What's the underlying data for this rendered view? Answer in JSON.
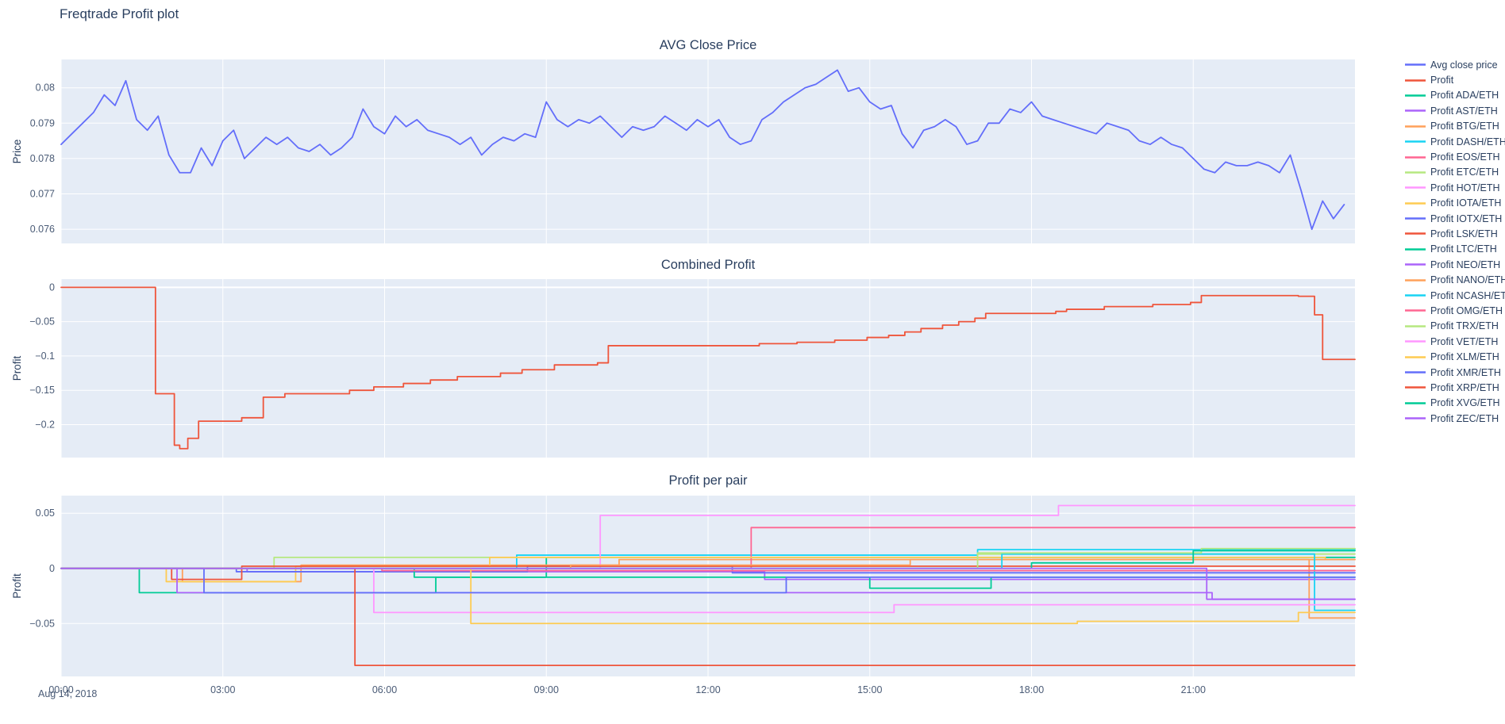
{
  "page": {
    "title": "Freqtrade Profit plot"
  },
  "colors": {
    "plot_bg": "#e5ecf6",
    "grid": "#ffffff",
    "font": "#2a3f5f",
    "tick": "#4a5b76",
    "price_line": "#636efa",
    "profit_line": "#EF553B"
  },
  "x_axis": {
    "tick_hours": [
      0,
      3,
      6,
      9,
      12,
      15,
      18,
      21
    ],
    "tick_labels": [
      "00:00",
      "03:00",
      "06:00",
      "09:00",
      "12:00",
      "15:00",
      "18:00",
      "21:00"
    ],
    "xlim": [
      0,
      24
    ],
    "date_label": "Aug 14, 2018"
  },
  "legend": {
    "items": [
      {
        "label": "Avg close price",
        "color": "#636efa"
      },
      {
        "label": "Profit",
        "color": "#EF553B"
      },
      {
        "label": "Profit ADA/ETH",
        "color": "#00cc96"
      },
      {
        "label": "Profit AST/ETH",
        "color": "#ab63fa"
      },
      {
        "label": "Profit BTG/ETH",
        "color": "#FFA15A"
      },
      {
        "label": "Profit DASH/ETH",
        "color": "#19d3f3"
      },
      {
        "label": "Profit EOS/ETH",
        "color": "#FF6692"
      },
      {
        "label": "Profit ETC/ETH",
        "color": "#B6E880"
      },
      {
        "label": "Profit HOT/ETH",
        "color": "#FF97FF"
      },
      {
        "label": "Profit IOTA/ETH",
        "color": "#FECB52"
      },
      {
        "label": "Profit IOTX/ETH",
        "color": "#636efa"
      },
      {
        "label": "Profit LSK/ETH",
        "color": "#EF553B"
      },
      {
        "label": "Profit LTC/ETH",
        "color": "#00cc96"
      },
      {
        "label": "Profit NEO/ETH",
        "color": "#ab63fa"
      },
      {
        "label": "Profit NANO/ETH",
        "color": "#FFA15A"
      },
      {
        "label": "Profit NCASH/ETH",
        "color": "#19d3f3"
      },
      {
        "label": "Profit OMG/ETH",
        "color": "#FF6692"
      },
      {
        "label": "Profit TRX/ETH",
        "color": "#B6E880"
      },
      {
        "label": "Profit VET/ETH",
        "color": "#FF97FF"
      },
      {
        "label": "Profit XLM/ETH",
        "color": "#FECB52"
      },
      {
        "label": "Profit XMR/ETH",
        "color": "#636efa"
      },
      {
        "label": "Profit XRP/ETH",
        "color": "#EF553B"
      },
      {
        "label": "Profit XVG/ETH",
        "color": "#00cc96"
      },
      {
        "label": "Profit ZEC/ETH",
        "color": "#ab63fa"
      }
    ]
  },
  "chart_data": [
    {
      "type": "line",
      "title": "AVG Close Price",
      "ylabel": "Price",
      "ylim": [
        0.0756,
        0.0808
      ],
      "ytick_values": [
        0.076,
        0.077,
        0.078,
        0.079,
        0.08
      ],
      "ytick_labels": [
        "0.076",
        "0.077",
        "0.078",
        "0.079",
        "0.08"
      ],
      "grid": true,
      "legend_position": "right",
      "series": [
        {
          "name": "Avg close price",
          "color": "#636efa",
          "shape": "linear",
          "x0": 0,
          "dx": 0.2,
          "y": [
            0.0784,
            0.0787,
            0.079,
            0.0793,
            0.0798,
            0.0795,
            0.0802,
            0.0791,
            0.0788,
            0.0792,
            0.0781,
            0.0776,
            0.0776,
            0.0783,
            0.0778,
            0.0785,
            0.0788,
            0.078,
            0.0783,
            0.0786,
            0.0784,
            0.0786,
            0.0783,
            0.0782,
            0.0784,
            0.0781,
            0.0783,
            0.0786,
            0.0794,
            0.0789,
            0.0787,
            0.0792,
            0.0789,
            0.0791,
            0.0788,
            0.0787,
            0.0786,
            0.0784,
            0.0786,
            0.0781,
            0.0784,
            0.0786,
            0.0785,
            0.0787,
            0.0786,
            0.0796,
            0.0791,
            0.0789,
            0.0791,
            0.079,
            0.0792,
            0.0789,
            0.0786,
            0.0789,
            0.0788,
            0.0789,
            0.0792,
            0.079,
            0.0788,
            0.0791,
            0.0789,
            0.0791,
            0.0786,
            0.0784,
            0.0785,
            0.0791,
            0.0793,
            0.0796,
            0.0798,
            0.08,
            0.0801,
            0.0803,
            0.0805,
            0.0799,
            0.08,
            0.0796,
            0.0794,
            0.0795,
            0.0787,
            0.0783,
            0.0788,
            0.0789,
            0.0791,
            0.0789,
            0.0784,
            0.0785,
            0.079,
            0.079,
            0.0794,
            0.0793,
            0.0796,
            0.0792,
            0.0791,
            0.079,
            0.0789,
            0.0788,
            0.0787,
            0.079,
            0.0789,
            0.0788,
            0.0785,
            0.0784,
            0.0786,
            0.0784,
            0.0783,
            0.078,
            0.0777,
            0.0776,
            0.0779,
            0.0778,
            0.0778,
            0.0779,
            0.0778,
            0.0776,
            0.0781,
            0.0771,
            0.076,
            0.0768,
            0.0763,
            0.0767
          ]
        }
      ]
    },
    {
      "type": "line",
      "title": "Combined Profit",
      "ylabel": "Profit",
      "ylim": [
        -0.248,
        0.012
      ],
      "ytick_values": [
        0,
        -0.05,
        -0.1,
        -0.15,
        -0.2
      ],
      "ytick_labels": [
        "0",
        "−0.05",
        "−0.1",
        "−0.15",
        "−0.2"
      ],
      "grid": true,
      "series": [
        {
          "name": "Profit",
          "color": "#EF553B",
          "shape": "hv",
          "x": [
            0,
            1.75,
            2.1,
            2.2,
            2.35,
            2.55,
            3.35,
            3.75,
            4.15,
            5.35,
            5.8,
            6.35,
            6.85,
            7.35,
            8.15,
            8.55,
            9.15,
            9.95,
            10.15,
            12.95,
            13.65,
            14.35,
            14.95,
            15.35,
            15.65,
            15.95,
            16.35,
            16.65,
            16.95,
            17.15,
            18.45,
            18.65,
            19.35,
            20.25,
            20.95,
            21.15,
            22.95,
            23.25,
            23.4
          ],
          "y": [
            0,
            -0.155,
            -0.23,
            -0.235,
            -0.22,
            -0.195,
            -0.19,
            -0.16,
            -0.155,
            -0.15,
            -0.145,
            -0.14,
            -0.135,
            -0.13,
            -0.125,
            -0.12,
            -0.113,
            -0.11,
            -0.085,
            -0.082,
            -0.08,
            -0.077,
            -0.073,
            -0.07,
            -0.065,
            -0.06,
            -0.055,
            -0.05,
            -0.045,
            -0.038,
            -0.035,
            -0.032,
            -0.028,
            -0.025,
            -0.022,
            -0.012,
            -0.013,
            -0.04,
            -0.105
          ]
        }
      ]
    },
    {
      "type": "line",
      "title": "Profit per pair",
      "ylabel": "Profit",
      "ylim": [
        -0.098,
        0.066
      ],
      "ytick_values": [
        0.05,
        0,
        -0.05
      ],
      "ytick_labels": [
        "0.05",
        "0",
        "−0.05"
      ],
      "grid": true,
      "series": [
        {
          "name": "Profit ADA/ETH",
          "color": "#00cc96",
          "shape": "hv",
          "x": [
            0,
            1.45,
            6.95,
            9.0
          ],
          "y": [
            0,
            -0.022,
            -0.008,
            0.01
          ]
        },
        {
          "name": "Profit AST/ETH",
          "color": "#ab63fa",
          "shape": "hv",
          "x": [
            0,
            3.45,
            13.05
          ],
          "y": [
            0,
            -0.003,
            -0.01
          ]
        },
        {
          "name": "Profit BTG/ETH",
          "color": "#FFA15A",
          "shape": "hv",
          "x": [
            0,
            2.25,
            4.45,
            10.35,
            23.15
          ],
          "y": [
            0,
            -0.012,
            0.003,
            0.008,
            -0.045
          ]
        },
        {
          "name": "Profit DASH/ETH",
          "color": "#19d3f3",
          "shape": "hv",
          "x": [
            0,
            8.45,
            17.0
          ],
          "y": [
            0,
            0.012,
            0.017
          ]
        },
        {
          "name": "Profit EOS/ETH",
          "color": "#FF6692",
          "shape": "hv",
          "x": [
            0,
            12.8
          ],
          "y": [
            0,
            0.037
          ]
        },
        {
          "name": "Profit ETC/ETH",
          "color": "#B6E880",
          "shape": "hv",
          "x": [
            0,
            3.95,
            17.0
          ],
          "y": [
            0,
            0.01,
            0.013
          ]
        },
        {
          "name": "Profit HOT/ETH",
          "color": "#FF97FF",
          "shape": "hv",
          "x": [
            0,
            10.0,
            18.5
          ],
          "y": [
            0,
            0.048,
            0.057
          ]
        },
        {
          "name": "Profit IOTA/ETH",
          "color": "#FECB52",
          "shape": "hv",
          "x": [
            0,
            1.95,
            4.35,
            7.95,
            23.45
          ],
          "y": [
            0,
            -0.012,
            0.002,
            0.01,
            0.008
          ]
        },
        {
          "name": "Profit IOTX/ETH",
          "color": "#636efa",
          "shape": "hv",
          "x": [
            0,
            3.25,
            8.65,
            12.45
          ],
          "y": [
            0,
            -0.003,
            0.002,
            -0.004
          ]
        },
        {
          "name": "Profit LSK/ETH",
          "color": "#EF553B",
          "shape": "hv",
          "x": [
            0,
            2.05,
            3.35
          ],
          "y": [
            0,
            -0.01,
            0.002
          ]
        },
        {
          "name": "Profit LTC/ETH",
          "color": "#00cc96",
          "shape": "hv",
          "x": [
            0,
            6.55,
            15.0,
            17.25
          ],
          "y": [
            0,
            -0.008,
            -0.018,
            -0.008
          ]
        },
        {
          "name": "Profit NEO/ETH",
          "color": "#ab63fa",
          "shape": "hv",
          "x": [
            0,
            2.15,
            21.35
          ],
          "y": [
            0,
            -0.022,
            -0.028
          ]
        },
        {
          "name": "Profit NANO/ETH",
          "color": "#FFA15A",
          "shape": "hv",
          "x": [
            0,
            9.45,
            15.75
          ],
          "y": [
            0,
            0.003,
            0.008
          ]
        },
        {
          "name": "Profit NCASH/ETH",
          "color": "#19d3f3",
          "shape": "hv",
          "x": [
            0,
            17.45,
            23.25
          ],
          "y": [
            0,
            0.013,
            -0.038
          ]
        },
        {
          "name": "Profit OMG/ETH",
          "color": "#FF6692",
          "shape": "hv",
          "x": [
            0,
            5.95
          ],
          "y": [
            0,
            -0.002
          ]
        },
        {
          "name": "Profit TRX/ETH",
          "color": "#B6E880",
          "shape": "hv",
          "x": [
            0,
            17.0,
            21.15
          ],
          "y": [
            0,
            0.014,
            0.018
          ]
        },
        {
          "name": "Profit VET/ETH",
          "color": "#FF97FF",
          "shape": "hv",
          "x": [
            0,
            5.8,
            15.45
          ],
          "y": [
            0,
            -0.04,
            -0.033
          ]
        },
        {
          "name": "Profit XLM/ETH",
          "color": "#FECB52",
          "shape": "hv",
          "x": [
            0,
            7.6,
            18.85,
            22.95
          ],
          "y": [
            0,
            -0.05,
            -0.048,
            -0.04
          ]
        },
        {
          "name": "Profit XMR/ETH",
          "color": "#636efa",
          "shape": "hv",
          "x": [
            0,
            2.65,
            13.45
          ],
          "y": [
            0,
            -0.022,
            -0.008
          ]
        },
        {
          "name": "Profit XRP/ETH",
          "color": "#EF553B",
          "shape": "hv",
          "x": [
            0,
            5.45
          ],
          "y": [
            0,
            -0.088
          ]
        },
        {
          "name": "Profit XVG/ETH",
          "color": "#00cc96",
          "shape": "hv",
          "x": [
            0,
            18.0,
            21.0
          ],
          "y": [
            0,
            0.005,
            0.016
          ]
        },
        {
          "name": "Profit ZEC/ETH",
          "color": "#ab63fa",
          "shape": "hv",
          "x": [
            0,
            21.25
          ],
          "y": [
            0,
            -0.028
          ]
        }
      ]
    }
  ]
}
